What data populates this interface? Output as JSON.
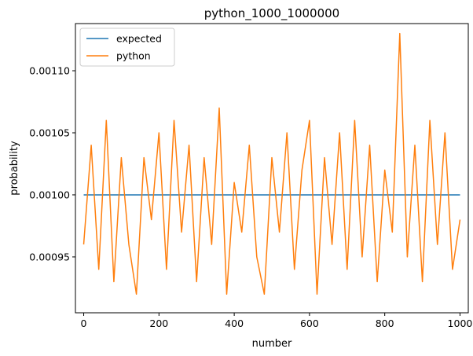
{
  "chart_data": {
    "type": "line",
    "title": "python_1000_1000000",
    "xlabel": "number",
    "ylabel": "probability",
    "xlim": [
      -22,
      1022
    ],
    "ylim": [
      0.000905,
      0.001138
    ],
    "x_ticks": [
      0,
      200,
      400,
      600,
      800,
      1000
    ],
    "x_tick_labels": [
      "0",
      "200",
      "400",
      "600",
      "800",
      "1000"
    ],
    "y_ticks": [
      0.00095,
      0.001,
      0.00105,
      0.0011
    ],
    "y_tick_labels": [
      "0.00095",
      "0.00100",
      "0.00105",
      "0.00110"
    ],
    "legend_position": "upper-left",
    "grid": false,
    "series": [
      {
        "name": "expected",
        "color": "#1f77b4",
        "x": [
          0,
          1000
        ],
        "y": [
          0.001,
          0.001
        ]
      },
      {
        "name": "python",
        "color": "#ff7f0e",
        "note_x_step": 20,
        "x": [
          0,
          20,
          40,
          60,
          80,
          100,
          120,
          140,
          160,
          180,
          200,
          220,
          240,
          260,
          280,
          300,
          320,
          340,
          360,
          380,
          400,
          420,
          440,
          460,
          480,
          500,
          520,
          540,
          560,
          580,
          600,
          620,
          640,
          660,
          680,
          700,
          720,
          740,
          760,
          780,
          800,
          820,
          840,
          860,
          880,
          900,
          920,
          940,
          960,
          980,
          1000
        ],
        "y": [
          0.00096,
          0.00104,
          0.00094,
          0.00106,
          0.00093,
          0.00103,
          0.00096,
          0.00092,
          0.00103,
          0.00098,
          0.00105,
          0.00094,
          0.00106,
          0.00097,
          0.00104,
          0.00093,
          0.00103,
          0.00096,
          0.00107,
          0.00092,
          0.00101,
          0.00097,
          0.00104,
          0.00095,
          0.00092,
          0.00103,
          0.00097,
          0.00105,
          0.00094,
          0.00102,
          0.00106,
          0.00092,
          0.00103,
          0.00096,
          0.00105,
          0.00094,
          0.00106,
          0.00095,
          0.00104,
          0.00093,
          0.00102,
          0.00097,
          0.00113,
          0.00095,
          0.00104,
          0.00093,
          0.00106,
          0.00096,
          0.00105,
          0.00094,
          0.00098
        ]
      }
    ]
  }
}
